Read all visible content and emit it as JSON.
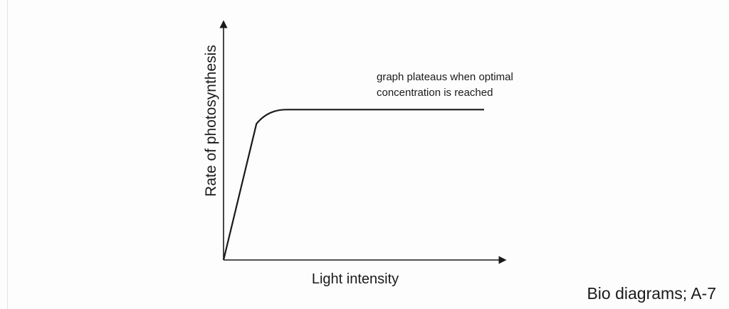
{
  "chart_data": {
    "type": "line",
    "title": "",
    "xlabel": "Light intensity",
    "ylabel": "Rate of photosynthesis",
    "axis_ticks": false,
    "grid": false,
    "series": [
      {
        "shape": "linear rise then plateau",
        "points": [
          [
            0,
            0
          ],
          [
            0.17,
            0.84
          ],
          [
            1.0,
            0.84
          ]
        ]
      }
    ],
    "annotation": {
      "line1": "graph plateaus when optimal",
      "line2": "concentration is reached"
    }
  },
  "caption": "Bio diagrams; A-7",
  "colors": {
    "ink": "#1a1a1a",
    "background": "#fdfdfd"
  }
}
